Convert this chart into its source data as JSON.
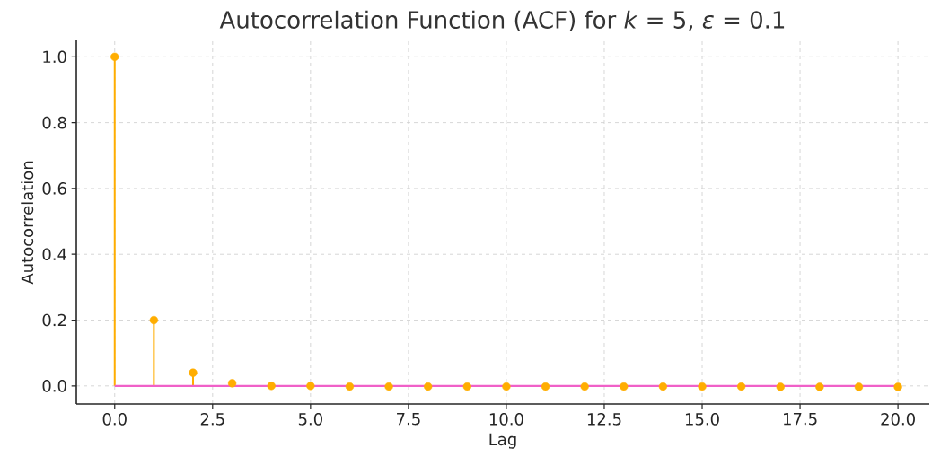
{
  "chart_data": {
    "type": "lollipop",
    "title": "Autocorrelation Function (ACF) for *k* = 5, *ε* = 0.1",
    "xlabel": "Lag",
    "ylabel": "Autocorrelation",
    "x": [
      0,
      1,
      2,
      3,
      4,
      5,
      6,
      7,
      8,
      9,
      10,
      11,
      12,
      13,
      14,
      15,
      16,
      17,
      18,
      19,
      20
    ],
    "values": [
      1.0,
      0.2,
      0.04,
      0.008,
      0,
      0,
      -0.002,
      -0.002,
      -0.002,
      -0.002,
      -0.002,
      -0.002,
      -0.002,
      -0.002,
      -0.002,
      -0.002,
      -0.002,
      -0.003,
      -0.003,
      -0.003,
      -0.003
    ],
    "color": "#ffad00",
    "marker": "circle",
    "grid": true,
    "ref_lines": [
      {
        "axis": "y",
        "value": 0,
        "color": "#f060c8"
      }
    ],
    "xlim": [
      -0.98,
      20.8
    ],
    "ylim": [
      -0.055,
      1.05
    ],
    "xticks": [
      {
        "value": 0,
        "label": "0.0"
      },
      {
        "value": 2.5,
        "label": "2.5"
      },
      {
        "value": 5,
        "label": "5.0"
      },
      {
        "value": 7.5,
        "label": "7.5"
      },
      {
        "value": 10,
        "label": "10.0"
      },
      {
        "value": 12.5,
        "label": "12.5"
      },
      {
        "value": 15,
        "label": "15.0"
      },
      {
        "value": 17.5,
        "label": "17.5"
      },
      {
        "value": 20,
        "label": "20.0"
      }
    ],
    "yticks": [
      {
        "value": 0,
        "label": "0.0"
      },
      {
        "value": 0.2,
        "label": "0.2"
      },
      {
        "value": 0.4,
        "label": "0.4"
      },
      {
        "value": 0.6,
        "label": "0.6"
      },
      {
        "value": 0.8,
        "label": "0.8"
      },
      {
        "value": 1.0,
        "label": "1.0"
      }
    ]
  }
}
